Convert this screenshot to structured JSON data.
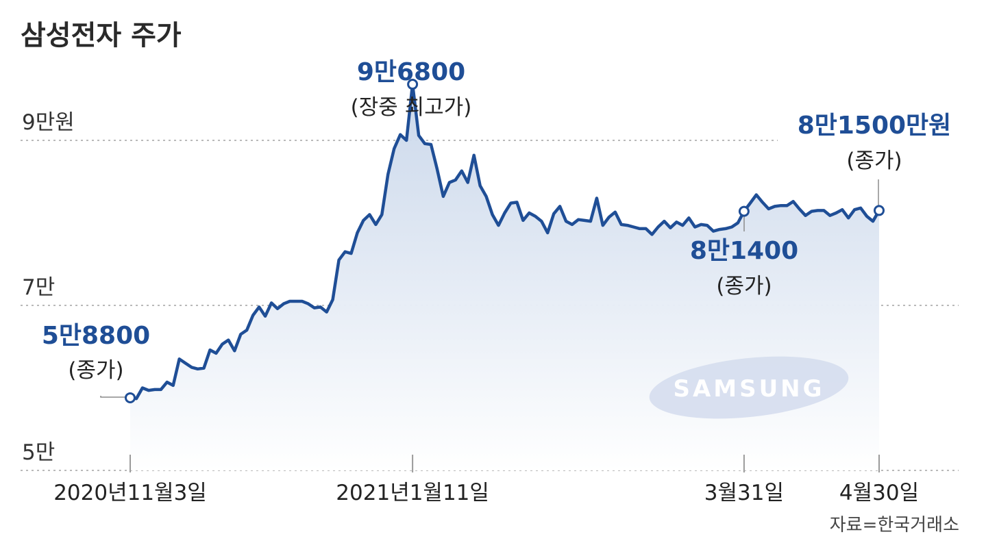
{
  "title": "삼성전자 주가",
  "source": "자료=한국거래소",
  "brand_watermark": "SAMSUNG",
  "colors": {
    "line": "#1f4e96",
    "area_top": "#c8d6ea",
    "area_bottom": "#ffffff",
    "annotation": "#1f4e96",
    "watermark_bg": "#d4dced"
  },
  "chart_data": {
    "type": "area",
    "y_ticks": [
      {
        "value": 90000,
        "label": "9만원"
      },
      {
        "value": 70000,
        "label": "7만"
      },
      {
        "value": 50000,
        "label": "5만"
      }
    ],
    "x_ticks": [
      {
        "x": 0,
        "label": "2020년11월3일"
      },
      {
        "x": 46,
        "label": "2021년1월11일"
      },
      {
        "x": 100,
        "label": "3월31일"
      },
      {
        "x": 122,
        "label": "4월30일"
      }
    ],
    "ylim": [
      49000,
      92000
    ],
    "xlim": [
      -20,
      135
    ],
    "grid": "dotted horizontal",
    "series": [
      {
        "points": [
          [
            0,
            58800
          ],
          [
            1,
            58700
          ],
          [
            2,
            60000
          ],
          [
            3,
            59700
          ],
          [
            4,
            59800
          ],
          [
            5,
            59800
          ],
          [
            6,
            60700
          ],
          [
            7,
            60300
          ],
          [
            8,
            63500
          ],
          [
            9,
            63000
          ],
          [
            10,
            62500
          ],
          [
            11,
            62300
          ],
          [
            12,
            62400
          ],
          [
            13,
            64600
          ],
          [
            14,
            64200
          ],
          [
            15,
            65300
          ],
          [
            16,
            65800
          ],
          [
            17,
            64500
          ],
          [
            18,
            66500
          ],
          [
            19,
            67000
          ],
          [
            20,
            68800
          ],
          [
            21,
            69800
          ],
          [
            22,
            68700
          ],
          [
            23,
            70300
          ],
          [
            24,
            69600
          ],
          [
            25,
            70200
          ],
          [
            26,
            70500
          ],
          [
            27,
            70500
          ],
          [
            28,
            70500
          ],
          [
            29,
            70200
          ],
          [
            30,
            69700
          ],
          [
            31,
            69800
          ],
          [
            32,
            69200
          ],
          [
            33,
            70700
          ],
          [
            34,
            75500
          ],
          [
            35,
            76500
          ],
          [
            36,
            76300
          ],
          [
            37,
            78800
          ],
          [
            38,
            80300
          ],
          [
            39,
            81000
          ],
          [
            40,
            79800
          ],
          [
            41,
            81000
          ],
          [
            42,
            85900
          ],
          [
            43,
            89000
          ],
          [
            44,
            90700
          ],
          [
            45,
            90000
          ],
          [
            46,
            96800
          ],
          [
            47,
            90600
          ],
          [
            48,
            89600
          ],
          [
            49,
            89500
          ],
          [
            50,
            86500
          ],
          [
            51,
            83200
          ],
          [
            52,
            84900
          ],
          [
            53,
            85200
          ],
          [
            54,
            86300
          ],
          [
            55,
            84900
          ],
          [
            56,
            88200
          ],
          [
            57,
            84500
          ],
          [
            58,
            83200
          ],
          [
            59,
            81000
          ],
          [
            60,
            79700
          ],
          [
            61,
            81200
          ],
          [
            62,
            82400
          ],
          [
            63,
            82500
          ],
          [
            64,
            80300
          ],
          [
            65,
            81200
          ],
          [
            66,
            80800
          ],
          [
            67,
            80200
          ],
          [
            68,
            78800
          ],
          [
            69,
            81100
          ],
          [
            70,
            82000
          ],
          [
            71,
            80200
          ],
          [
            72,
            79800
          ],
          [
            73,
            80400
          ],
          [
            74,
            80300
          ],
          [
            75,
            80200
          ],
          [
            76,
            83000
          ],
          [
            77,
            79700
          ],
          [
            78,
            80700
          ],
          [
            79,
            81300
          ],
          [
            80,
            79800
          ],
          [
            81,
            79700
          ],
          [
            82,
            79500
          ],
          [
            83,
            79300
          ],
          [
            84,
            79300
          ],
          [
            85,
            78600
          ],
          [
            86,
            79500
          ],
          [
            87,
            80200
          ],
          [
            88,
            79400
          ],
          [
            89,
            80100
          ],
          [
            90,
            79700
          ],
          [
            91,
            80600
          ],
          [
            92,
            79500
          ],
          [
            93,
            79800
          ],
          [
            94,
            79700
          ],
          [
            95,
            79000
          ],
          [
            96,
            79200
          ],
          [
            97,
            79300
          ],
          [
            98,
            79500
          ],
          [
            99,
            80000
          ],
          [
            100,
            81400
          ],
          [
            101,
            82400
          ],
          [
            102,
            83400
          ],
          [
            103,
            82500
          ],
          [
            104,
            81700
          ],
          [
            105,
            82000
          ],
          [
            106,
            82100
          ],
          [
            107,
            82100
          ],
          [
            108,
            82600
          ],
          [
            109,
            81700
          ],
          [
            110,
            80900
          ],
          [
            111,
            81400
          ],
          [
            112,
            81500
          ],
          [
            113,
            81500
          ],
          [
            114,
            80900
          ],
          [
            115,
            81200
          ],
          [
            116,
            81600
          ],
          [
            117,
            80600
          ],
          [
            118,
            81600
          ],
          [
            119,
            81800
          ],
          [
            120,
            80800
          ],
          [
            121,
            80200
          ],
          [
            122,
            81500
          ]
        ]
      }
    ],
    "annotations": [
      {
        "x": 0,
        "y": 58800,
        "value": "5만8800",
        "note": "(종가)"
      },
      {
        "x": 46,
        "y": 96800,
        "value": "9만6800",
        "note": "(장중 최고가)"
      },
      {
        "x": 100,
        "y": 81400,
        "value": "8만1400",
        "note": "(종가)"
      },
      {
        "x": 122,
        "y": 81500,
        "value": "8만1500만원",
        "note": "(종가)"
      }
    ]
  }
}
